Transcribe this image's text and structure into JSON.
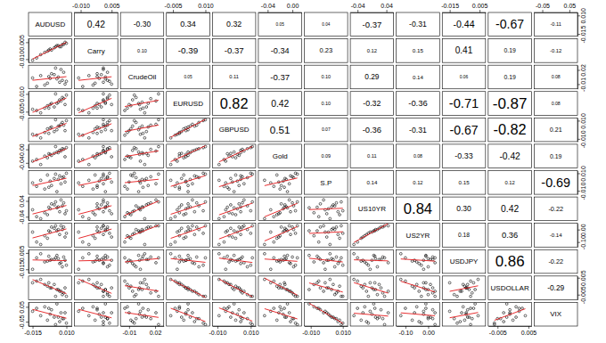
{
  "chart_data": {
    "type": "scatter_matrix",
    "variables": [
      {
        "name": "AUDUSD",
        "lim": [
          -0.018,
          0.014
        ],
        "ticks": [
          -0.015,
          {
            "value": 0.01,
            "label": "0.010"
          }
        ],
        "values": [
          0.004,
          -0.006,
          0.008,
          -0.002,
          0.01,
          -0.012,
          0.001,
          0.006,
          -0.004,
          0.003,
          -0.009,
          0.007,
          -0.001,
          0.005,
          -0.015,
          0.002,
          0.009,
          -0.003
        ]
      },
      {
        "name": "Carry",
        "lim": [
          -0.013,
          0.008
        ],
        "ticks": [
          {
            "value": -0.01,
            "label": "-0.010"
          },
          0.005
        ],
        "values": [
          0.002,
          -0.004,
          0.003,
          -0.001,
          0.004,
          -0.009,
          0.0,
          0.001,
          -0.003,
          0.002,
          -0.006,
          0.003,
          -0.002,
          0.001,
          -0.011,
          0.001,
          0.005,
          -0.002
        ]
      },
      {
        "name": "CrudeOil",
        "lim": [
          -0.02,
          0.03
        ],
        "ticks": [
          -0.01,
          0.02
        ],
        "values": [
          0.005,
          -0.012,
          0.015,
          0.002,
          -0.004,
          -0.015,
          0.01,
          0.021,
          -0.008,
          0.001,
          0.008,
          -0.002,
          0.012,
          -0.006,
          0.003,
          0.024,
          -0.01,
          0.006
        ]
      },
      {
        "name": "EURUSD",
        "lim": [
          -0.008,
          0.012
        ],
        "ticks": [
          -0.005,
          {
            "value": 0.01,
            "label": "0.010"
          }
        ],
        "values": [
          0.003,
          -0.002,
          0.006,
          0.001,
          0.009,
          -0.004,
          -0.001,
          0.004,
          0.0,
          0.002,
          -0.006,
          0.007,
          0.002,
          0.005,
          -0.003,
          0.01,
          0.001,
          -0.002
        ]
      },
      {
        "name": "GBPUSD",
        "lim": [
          -0.013,
          0.013
        ],
        "ticks": [
          {
            "value": -0.01,
            "label": "-0.010"
          },
          {
            "value": 0.01,
            "label": "0.010"
          }
        ],
        "values": [
          0.004,
          -0.003,
          0.005,
          0.002,
          0.01,
          -0.006,
          -0.002,
          0.006,
          0.001,
          0.0,
          -0.009,
          0.008,
          0.003,
          0.004,
          -0.005,
          0.011,
          -0.001,
          -0.004
        ]
      },
      {
        "name": "Gold",
        "lim": [
          -0.055,
          0.015
        ],
        "ticks": [
          -0.04,
          {
            "value": 0,
            "label": "0.00"
          }
        ],
        "values": [
          -0.01,
          -0.02,
          0.0,
          -0.015,
          0.005,
          -0.03,
          -0.012,
          -0.005,
          -0.025,
          -0.008,
          -0.045,
          0.002,
          -0.018,
          -0.003,
          -0.035,
          0.008,
          -0.022,
          -0.013
        ]
      },
      {
        "name": "S.P",
        "lim": [
          -0.014,
          0.013
        ],
        "ticks": [
          {
            "value": -0.01,
            "label": "-0.010"
          },
          {
            "value": 0.01,
            "label": "0.010"
          }
        ],
        "values": [
          0.003,
          -0.008,
          0.006,
          0.001,
          0.01,
          -0.005,
          0.004,
          -0.002,
          0.008,
          -0.011,
          0.002,
          0.005,
          -0.004,
          0.007,
          -0.001,
          0.009,
          0.0,
          -0.006
        ]
      },
      {
        "name": "US10YR",
        "lim": [
          -0.06,
          0.06
        ],
        "ticks": [
          -0.04,
          0.04
        ],
        "values": [
          0.01,
          -0.02,
          0.03,
          0.0,
          -0.01,
          -0.04,
          0.02,
          0.045,
          -0.03,
          0.005,
          -0.05,
          0.015,
          0.025,
          -0.015,
          -0.005,
          0.035,
          -0.025,
          0.008
        ]
      },
      {
        "name": "US2YR",
        "lim": [
          -0.14,
          0.05
        ],
        "ticks": [
          {
            "value": -0.1,
            "label": "-0.10"
          },
          {
            "value": 0,
            "label": "0.00"
          }
        ],
        "values": [
          0.0,
          -0.05,
          0.02,
          -0.02,
          -0.03,
          -0.1,
          0.01,
          0.03,
          -0.07,
          -0.01,
          -0.12,
          0.0,
          0.02,
          -0.04,
          -0.02,
          0.03,
          -0.06,
          -0.01
        ]
      },
      {
        "name": "USDJPY",
        "lim": [
          -0.02,
          0.009
        ],
        "ticks": [
          -0.015,
          0.005
        ],
        "values": [
          -0.002,
          -0.006,
          0.0,
          -0.004,
          -0.01,
          -0.001,
          -0.003,
          -0.007,
          -0.005,
          0.002,
          0.004,
          -0.012,
          -0.003,
          -0.008,
          -0.015,
          -0.001,
          -0.004,
          0.001
        ]
      },
      {
        "name": "USDOLLAR",
        "lim": [
          -0.008,
          0.006
        ],
        "ticks": [
          -0.005,
          0.005
        ],
        "values": [
          -0.002,
          0.001,
          -0.004,
          -0.001,
          -0.006,
          0.003,
          0.001,
          -0.003,
          0.0,
          -0.002,
          0.004,
          -0.005,
          -0.001,
          -0.003,
          0.002,
          -0.006,
          -0.001,
          0.002
        ]
      },
      {
        "name": "VIX",
        "lim": [
          -0.08,
          0.08
        ],
        "ticks": [
          -0.05,
          0.05
        ],
        "values": [
          -0.02,
          0.05,
          -0.03,
          0.0,
          -0.06,
          0.04,
          -0.02,
          0.01,
          -0.04,
          0.07,
          -0.01,
          -0.03,
          0.03,
          -0.05,
          0.02,
          -0.07,
          0.01,
          0.04
        ]
      }
    ],
    "correlations": [
      [
        0.42,
        {
          "value": -0.3,
          "label": "-0.30"
        },
        0.34,
        0.32,
        0.05,
        0.04,
        -0.37,
        -0.31,
        -0.44,
        -0.67,
        -0.11
      ],
      [
        {
          "value": 0.1,
          "label": "0.10"
        },
        -0.39,
        -0.37,
        -0.34,
        0.23,
        0.12,
        0.15,
        0.41,
        0.19,
        -0.12
      ],
      [
        0.05,
        0.11,
        -0.37,
        {
          "value": 0.1,
          "label": "0.10"
        },
        0.29,
        0.14,
        0.06,
        0.19,
        0.08
      ],
      [
        0.82,
        0.42,
        {
          "value": 0.1,
          "label": "0.10"
        },
        -0.32,
        -0.36,
        -0.71,
        -0.87,
        0.08
      ],
      [
        0.51,
        0.07,
        -0.36,
        -0.31,
        -0.67,
        -0.82,
        0.21
      ],
      [
        0.09,
        0.11,
        0.08,
        -0.33,
        -0.42,
        0.19
      ],
      [
        0.14,
        0.12,
        0.15,
        0.12,
        -0.69
      ],
      [
        0.84,
        {
          "value": 0.3,
          "label": "0.30"
        },
        0.42,
        -0.22
      ],
      [
        0.18,
        0.36,
        -0.14
      ],
      [
        0.86,
        -0.22
      ],
      [
        -0.29
      ]
    ]
  }
}
